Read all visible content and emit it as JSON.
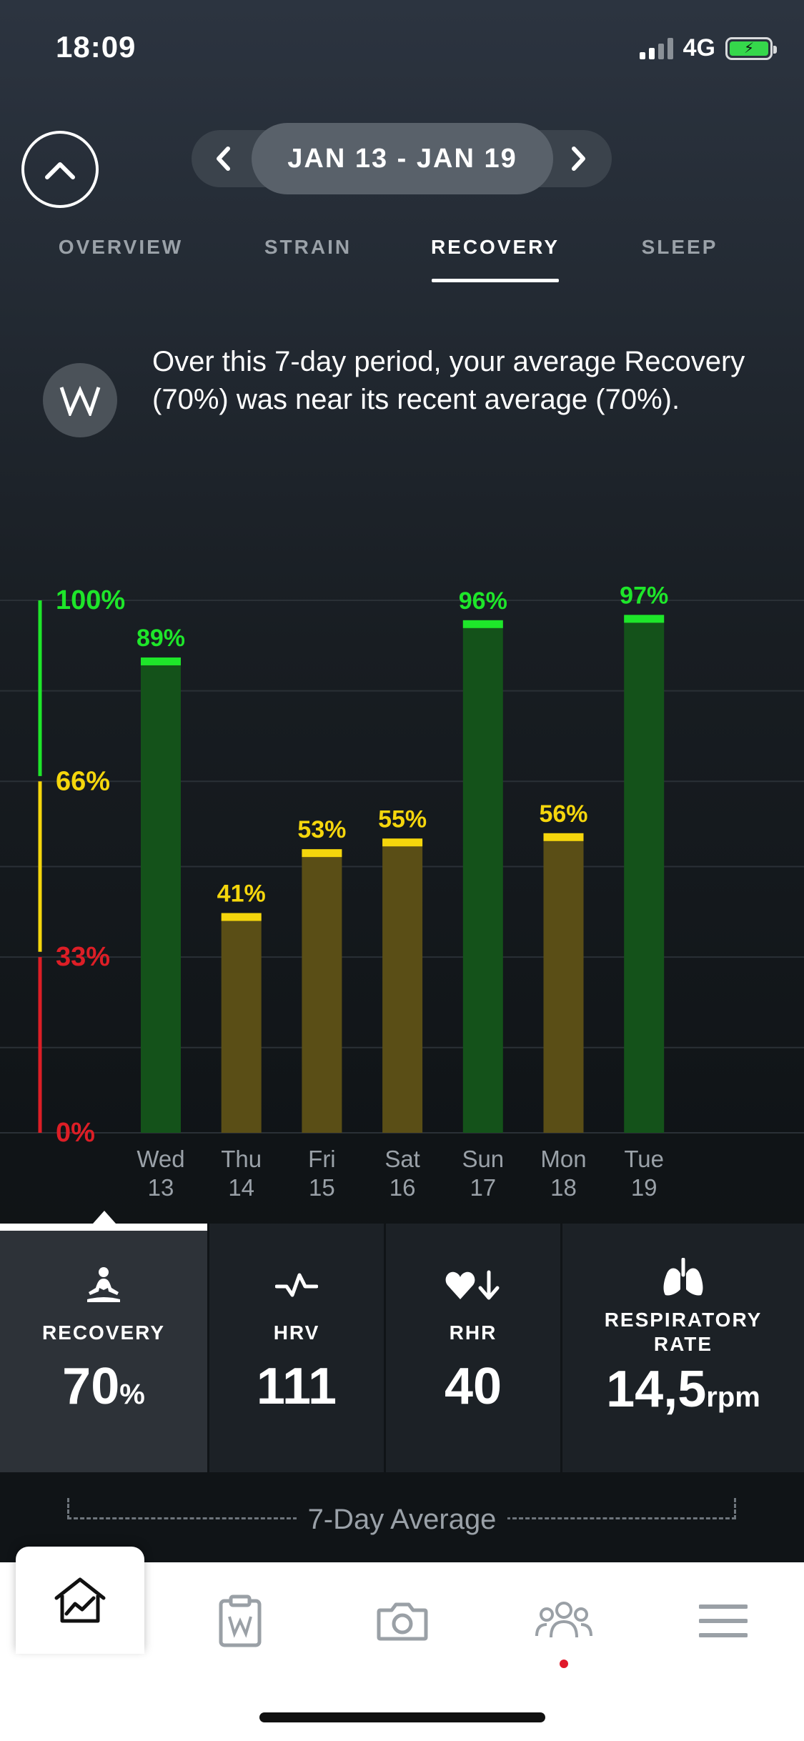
{
  "status_bar": {
    "time": "18:09",
    "network": "4G"
  },
  "header": {
    "date_range": "JAN 13 - JAN 19"
  },
  "tabs": [
    {
      "label": "OVERVIEW",
      "active": false
    },
    {
      "label": "STRAIN",
      "active": false
    },
    {
      "label": "RECOVERY",
      "active": true
    },
    {
      "label": "SLEEP",
      "active": false
    }
  ],
  "insight": {
    "text": "Over this 7-day period, your average Recovery (70%) was near its recent average (70%)."
  },
  "chart_data": {
    "type": "bar",
    "categories": [
      "Wed 13",
      "Thu 14",
      "Fri 15",
      "Sat 16",
      "Sun 17",
      "Mon 18",
      "Tue 19"
    ],
    "day_names": [
      "Wed",
      "Thu",
      "Fri",
      "Sat",
      "Sun",
      "Mon",
      "Tue"
    ],
    "day_numbers": [
      "13",
      "14",
      "15",
      "16",
      "17",
      "18",
      "19"
    ],
    "values": [
      89,
      41,
      53,
      55,
      96,
      56,
      97
    ],
    "value_labels": [
      "89%",
      "41%",
      "53%",
      "55%",
      "96%",
      "56%",
      "97%"
    ],
    "ylim": [
      0,
      100
    ],
    "y_ticks": [
      {
        "value": 100,
        "label": "100%",
        "color": "#1ee62a"
      },
      {
        "value": 66,
        "label": "66%",
        "color": "#f5d60c"
      },
      {
        "value": 33,
        "label": "33%",
        "color": "#dd1e26"
      },
      {
        "value": 0,
        "label": "0%",
        "color": "#dd1e26"
      }
    ],
    "zones": [
      {
        "from": 67,
        "to": 100,
        "color": "#1ee62a",
        "bar_fill": "#14521a",
        "cap": "#1ee62a"
      },
      {
        "from": 34,
        "to": 66,
        "color": "#f5d60c",
        "bar_fill": "#5a4e16",
        "cap": "#f5d60c"
      },
      {
        "from": 0,
        "to": 33,
        "color": "#dd1e26",
        "bar_fill": "#5a1616",
        "cap": "#dd1e26"
      }
    ],
    "grid": true
  },
  "stats": [
    {
      "icon": "meditation-icon",
      "label": "RECOVERY",
      "value": "70",
      "unit": "%",
      "active": true
    },
    {
      "icon": "hrv-pulse-icon",
      "label": "HRV",
      "value": "111",
      "unit": "",
      "active": false
    },
    {
      "icon": "heart-down-icon",
      "label": "RHR",
      "value": "40",
      "unit": "",
      "active": false
    },
    {
      "icon": "lungs-icon",
      "label_line1": "RESPIRATORY",
      "label_line2": "RATE",
      "value": "14,5",
      "unit": "rpm",
      "active": false
    }
  ],
  "average": {
    "label": "7-Day Average"
  },
  "bottom_nav": [
    {
      "icon": "home-chart-icon",
      "active": true
    },
    {
      "icon": "clipboard-icon",
      "active": false
    },
    {
      "icon": "camera-icon",
      "active": false
    },
    {
      "icon": "community-icon",
      "active": false,
      "notification": true
    },
    {
      "icon": "menu-icon",
      "active": false
    }
  ],
  "colors": {
    "green": "#1ee62a",
    "yellow": "#f5d60c",
    "red": "#dd1e26",
    "notification": "#e0192a"
  }
}
